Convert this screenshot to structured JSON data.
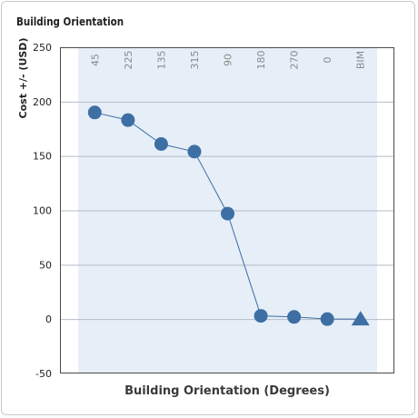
{
  "panel": {
    "title": "Building Orientation"
  },
  "chart_data": {
    "type": "line",
    "title": "Building Orientation",
    "xlabel": "Building Orientation (Degrees)",
    "ylabel": "Cost +/- (USD)",
    "categories": [
      "45",
      "225",
      "135",
      "315",
      "90",
      "180",
      "270",
      "0",
      "BIM"
    ],
    "values": [
      190,
      183,
      161,
      154,
      97,
      3,
      2,
      0,
      0
    ],
    "markers": [
      "circle",
      "circle",
      "circle",
      "circle",
      "circle",
      "circle",
      "circle",
      "circle",
      "triangle"
    ],
    "ylim": [
      -50,
      250
    ],
    "yticks": [
      250,
      200,
      150,
      100,
      50,
      0,
      -50
    ],
    "grid": true,
    "category_labels_position": "top-rotated",
    "colors": {
      "series": "#3d6fa4",
      "plot_band": "#e6eef8",
      "grid": "#b4bcc8",
      "frame": "#4a4a4a"
    }
  }
}
